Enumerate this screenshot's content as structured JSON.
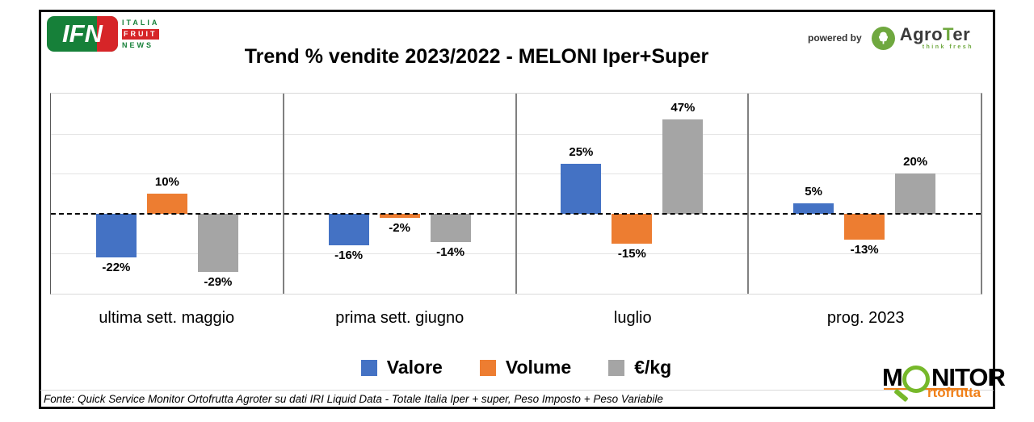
{
  "header": {
    "title": "Trend % vendite 2023/2022 - MELONI Iper+Super",
    "powered_by": "powered by",
    "ifn": {
      "abbr": "IFN",
      "line1": "ITALIA",
      "line2": "FRUIT",
      "line3": "NEWS"
    },
    "agroter": {
      "name_pre": "Agro",
      "name_t": "T",
      "name_post": "er",
      "tagline": "think fresh"
    }
  },
  "chart_data": {
    "type": "bar",
    "title": "Trend % vendite 2023/2022 - MELONI Iper+Super",
    "categories": [
      "ultima sett. maggio",
      "prima sett. giugno",
      "luglio",
      "prog. 2023"
    ],
    "series": [
      {
        "name": "Valore",
        "color": "#4472C4",
        "values": [
          -22,
          -16,
          25,
          5
        ]
      },
      {
        "name": "Volume",
        "color": "#ED7D31",
        "values": [
          10,
          -2,
          -15,
          -13
        ]
      },
      {
        "name": "€/kg",
        "color": "#A5A5A5",
        "values": [
          -29,
          -14,
          47,
          20
        ]
      }
    ],
    "value_suffix": "%",
    "ylim": [
      -40,
      60
    ],
    "yticks": [
      -40,
      -20,
      0,
      20,
      40,
      60
    ],
    "zero_line": "dashed",
    "gridlines": true,
    "panel_dividers": true,
    "legend_position": "bottom",
    "data_labels": true
  },
  "monitor_logo": {
    "m": "M",
    "nitor": "NITOR",
    "sub": "rtofrutta"
  },
  "footer": {
    "source": "Fonte: Quick Service Monitor Ortofrutta Agroter su dati IRI Liquid Data - Totale Italia Iper + super, Peso Imposto + Peso Variabile"
  },
  "colors": {
    "ifn_green": "#168039",
    "ifn_red": "#D62528",
    "agroter_green": "#6FA83F",
    "monitor_green": "#76B82A",
    "monitor_orange": "#F08019",
    "series_valore": "#4472C4",
    "series_volume": "#ED7D31",
    "series_eur_kg": "#A5A5A5"
  }
}
